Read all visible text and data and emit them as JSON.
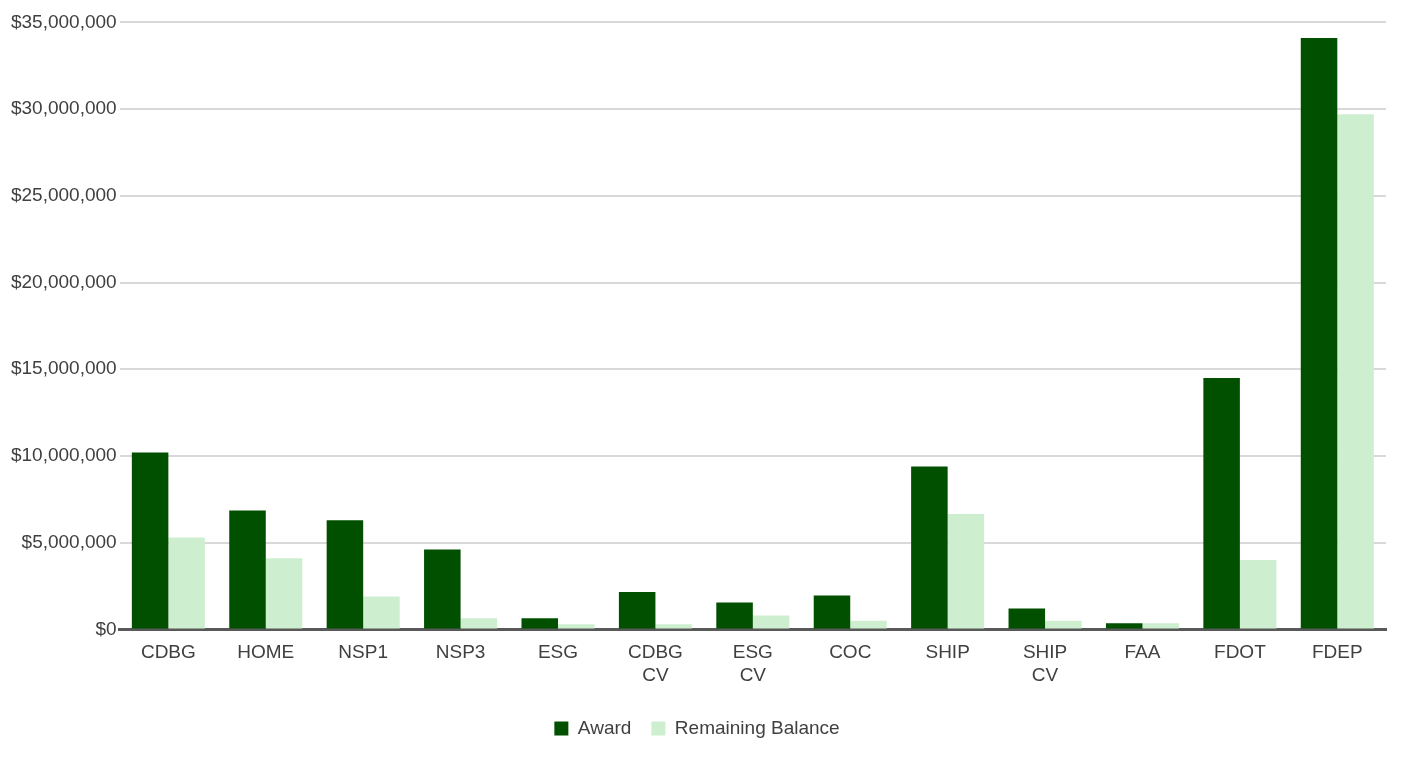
{
  "chart_data": {
    "type": "bar",
    "categories": [
      "CDBG",
      "HOME",
      "NSP1",
      "NSP3",
      "ESG",
      "CDBG CV",
      "ESG CV",
      "COC",
      "SHIP",
      "SHIP CV",
      "FAA",
      "FDOT",
      "FDEP"
    ],
    "series": [
      {
        "name": "Award",
        "color": "#005000",
        "values": [
          10200000,
          6850000,
          6300000,
          4600000,
          650000,
          2150000,
          1550000,
          1950000,
          9400000,
          1200000,
          350000,
          14500000,
          34100000
        ]
      },
      {
        "name": "Remaining Balance",
        "color": "#cdefd0",
        "values": [
          5300000,
          4100000,
          1900000,
          650000,
          300000,
          300000,
          800000,
          500000,
          6650000,
          500000,
          350000,
          4000000,
          29700000
        ]
      }
    ],
    "ylim": [
      0,
      35000000
    ],
    "yticks": [
      {
        "value": 0,
        "label": "$0"
      },
      {
        "value": 5000000,
        "label": "$5,000,000"
      },
      {
        "value": 10000000,
        "label": "$10,000,000"
      },
      {
        "value": 15000000,
        "label": "$15,000,000"
      },
      {
        "value": 20000000,
        "label": "$20,000,000"
      },
      {
        "value": 25000000,
        "label": "$25,000,000"
      },
      {
        "value": 30000000,
        "label": "$30,000,000"
      },
      {
        "value": 35000000,
        "label": "$35,000,000"
      }
    ],
    "grid": "y",
    "legend": "bottom"
  }
}
